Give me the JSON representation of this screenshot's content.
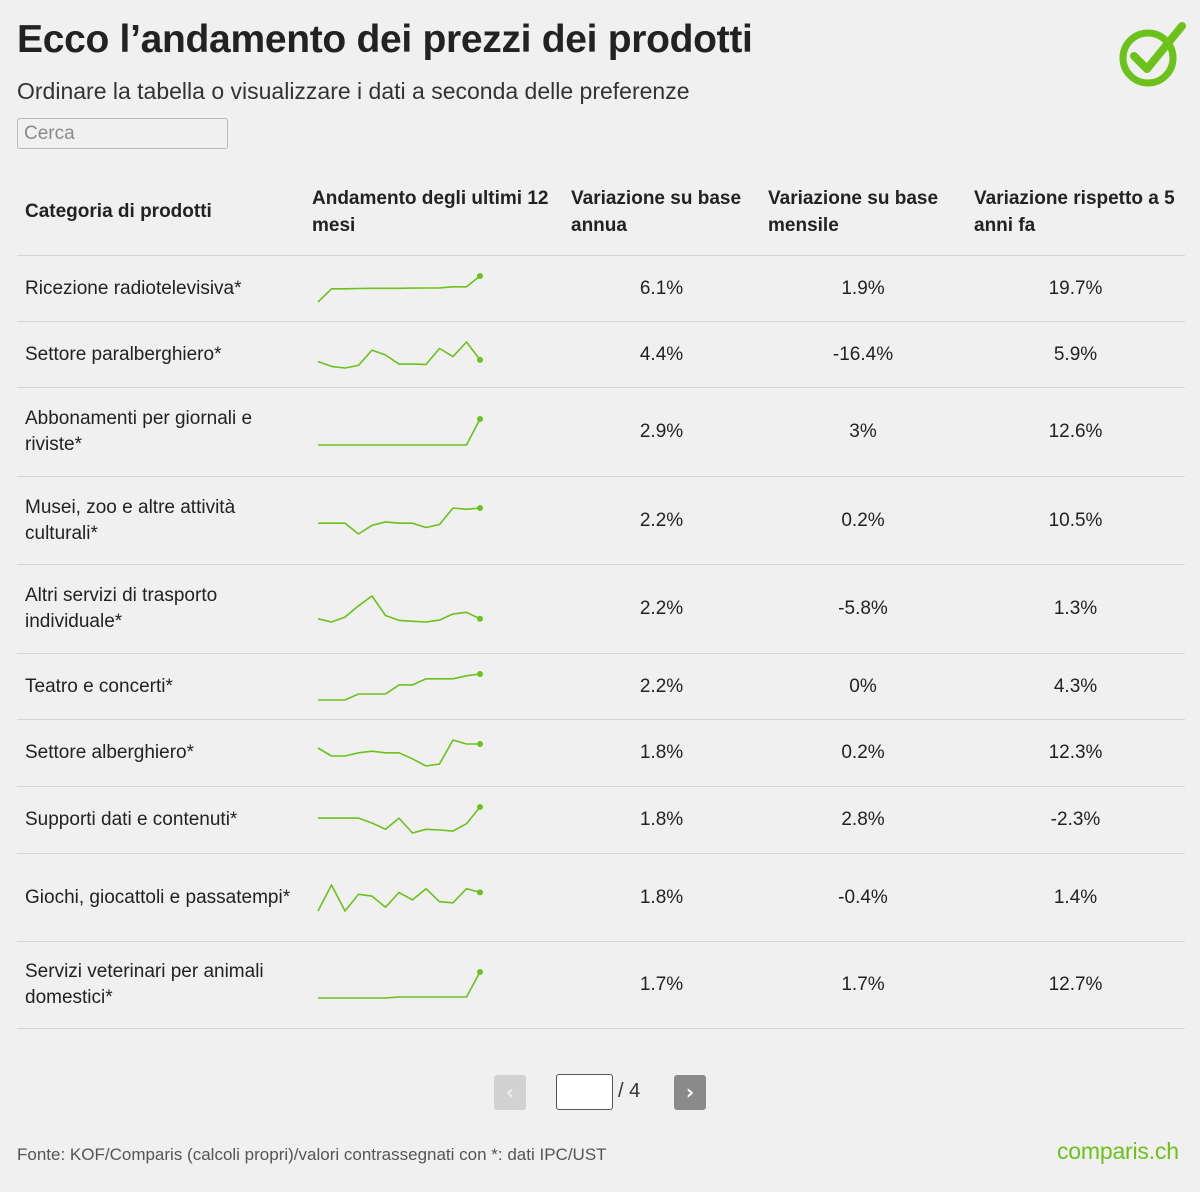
{
  "header": {
    "title": "Ecco l’andamento dei prezzi dei prodotti",
    "subtitle": "Ordinare la tabella o visualizzare i dati a seconda delle preferenze"
  },
  "search": {
    "placeholder": "Cerca"
  },
  "colors": {
    "accent": "#6ac21a",
    "text": "#222222",
    "background": "#f0f0f0"
  },
  "logo_icon": "checkmark-circle-icon",
  "chart_data": {
    "type": "table",
    "columns": [
      "Categoria di prodotti",
      "Andamento degli ultimi 12 mesi",
      "Variazione su base annua",
      "Variazione su base mensile",
      "Variazione rispetto a 5 anni fa"
    ],
    "rows": [
      {
        "category": "Ricezione radiotelevisiva*",
        "trend": [
          0,
          10,
          10,
          10.2,
          10.4,
          10.4,
          10.4,
          10.5,
          10.6,
          10.7,
          11.5,
          11.5,
          19.7
        ],
        "annual": "6.1%",
        "monthly": "1.9%",
        "five_year": "19.7%"
      },
      {
        "category": "Settore paralberghiero*",
        "trend": [
          3,
          1.5,
          1,
          1.8,
          6.5,
          5,
          2.2,
          2.2,
          2.1,
          7,
          4.5,
          9,
          3.5
        ],
        "annual": "4.4%",
        "monthly": "-16.4%",
        "five_year": "5.9%"
      },
      {
        "category": "Abbonamenti per giornali e riviste*",
        "trend": [
          0,
          0,
          0,
          0,
          0,
          0,
          0,
          0,
          0,
          0,
          0,
          0,
          12.6
        ],
        "annual": "2.9%",
        "monthly": "3%",
        "five_year": "12.6%"
      },
      {
        "category": "Musei, zoo e altre attività culturali*",
        "trend": [
          3,
          3,
          3,
          0.5,
          2.5,
          3.3,
          3,
          3,
          2,
          2.7,
          6.5,
          6.2,
          6.5
        ],
        "annual": "2.2%",
        "monthly": "0.2%",
        "five_year": "10.5%"
      },
      {
        "category": "Altri servizi di trasporto individuale*",
        "trend": [
          3,
          2,
          3.5,
          7,
          10,
          4,
          2.5,
          2.2,
          2,
          2.6,
          4.5,
          5,
          3
        ],
        "annual": "2.2%",
        "monthly": "-5.8%",
        "five_year": "1.3%"
      },
      {
        "category": "Teatro e concerti*",
        "trend": [
          0,
          0,
          0,
          1,
          1,
          1,
          2.5,
          2.5,
          3.5,
          3.5,
          3.5,
          4,
          4.3
        ],
        "annual": "2.2%",
        "monthly": "0%",
        "five_year": "4.3%"
      },
      {
        "category": "Settore alberghiero*",
        "trend": [
          4,
          2,
          2,
          2.8,
          3.2,
          2.8,
          2.8,
          1.3,
          -0.5,
          0,
          6,
          5,
          5
        ],
        "annual": "1.8%",
        "monthly": "0.2%",
        "five_year": "12.3%"
      },
      {
        "category": "Supporti dati e contenuti*",
        "trend": [
          3,
          3,
          3,
          3,
          1.7,
          0,
          3,
          -1,
          0,
          -0.2,
          -0.5,
          1.5,
          6
        ],
        "annual": "1.8%",
        "monthly": "2.8%",
        "five_year": "-2.3%"
      },
      {
        "category": "Giochi, giocattoli e passatempi*",
        "trend": [
          0,
          7,
          0,
          4.5,
          4,
          1,
          5,
          3,
          6,
          2.5,
          2.2,
          6,
          5
        ],
        "annual": "1.8%",
        "monthly": "-0.4%",
        "five_year": "1.4%"
      },
      {
        "category": "Servizi veterinari per animali domestici*",
        "trend": [
          0,
          0,
          0,
          0,
          0,
          0,
          0.2,
          0.2,
          0.2,
          0.2,
          0.2,
          0.2,
          5
        ],
        "annual": "1.7%",
        "monthly": "1.7%",
        "five_year": "12.7%"
      }
    ]
  },
  "pagination": {
    "prev_label": "‹",
    "next_label": "›",
    "current_page": "",
    "total_label": "/ 4"
  },
  "footer": {
    "source": "Fonte: KOF/Comparis (calcoli propri)/valori contrassegnati con *: dati IPC/UST",
    "brand": "comparis.ch"
  }
}
